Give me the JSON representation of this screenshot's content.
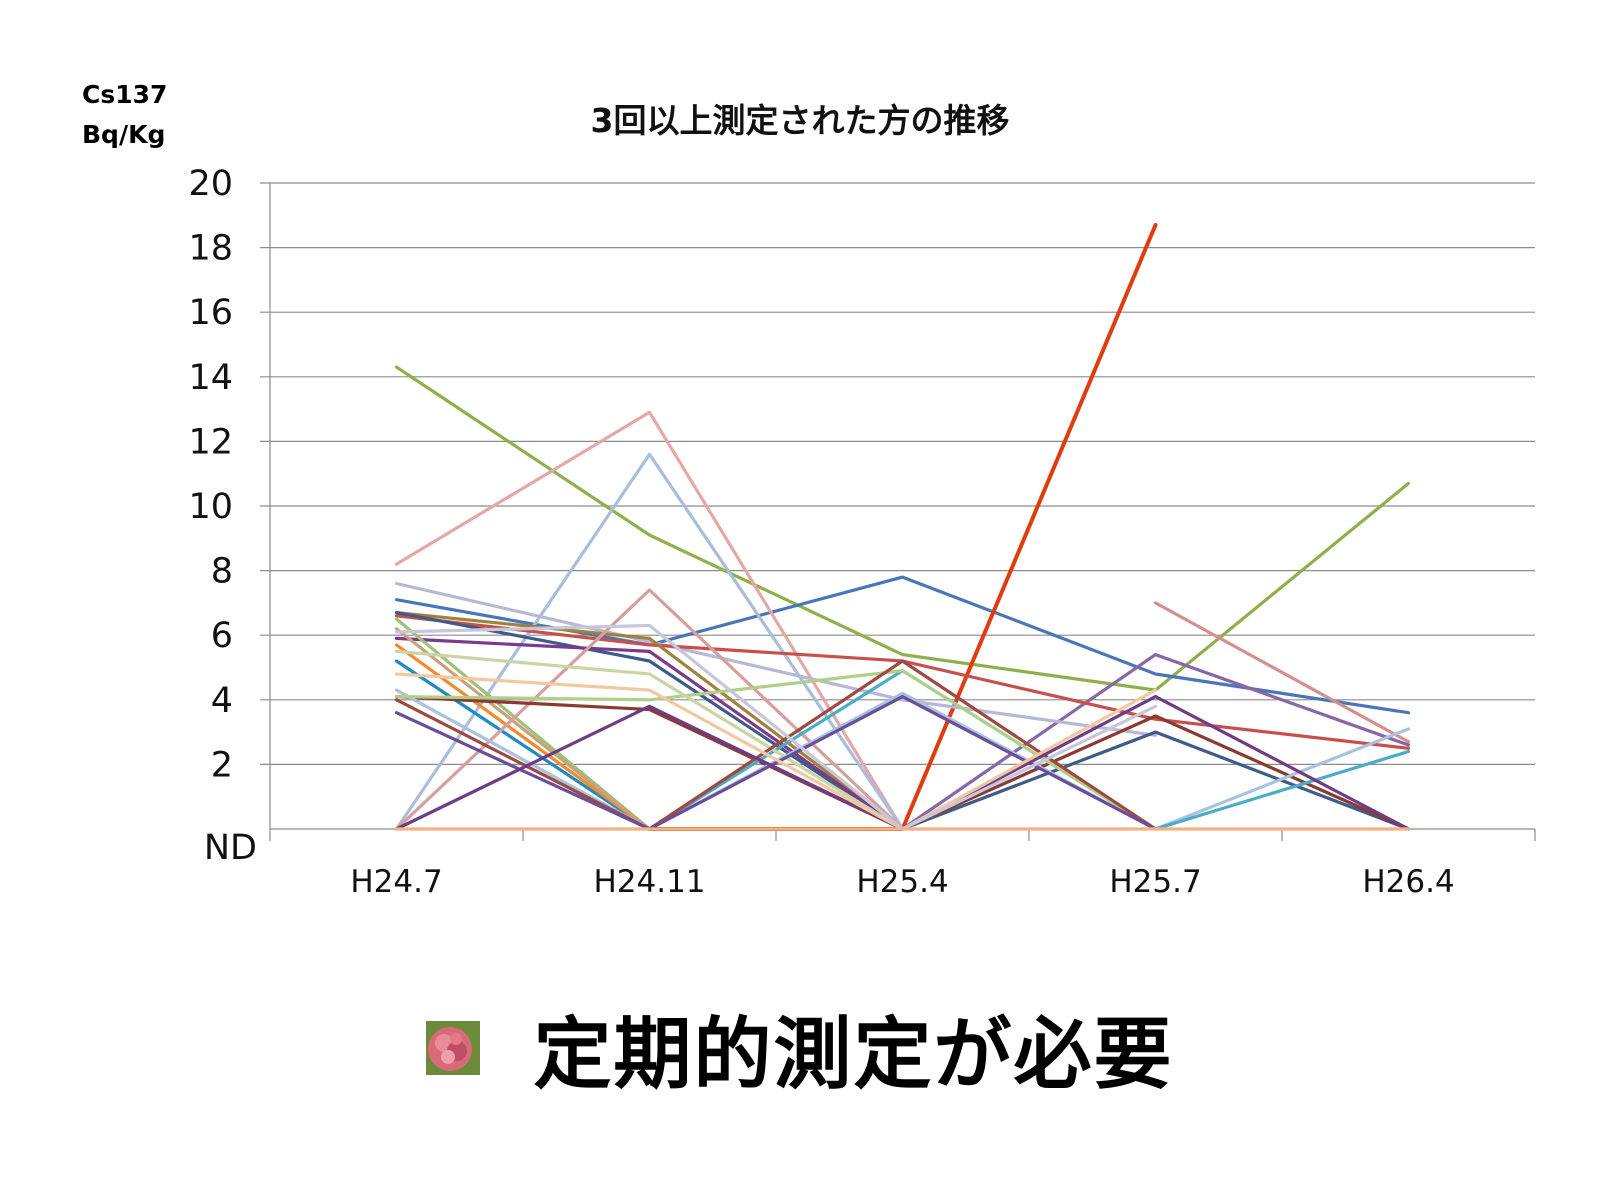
{
  "unit": {
    "line1": "Cs137",
    "line2": "Bq/Kg"
  },
  "title": "3回以上測定された方の推移",
  "footer": {
    "text": "定期的測定が必要",
    "bullet_icon": "rose-flower-icon"
  },
  "chart_data": {
    "type": "line",
    "title": "3回以上測定された方の推移",
    "ylabel": "Cs137 Bq/Kg",
    "xlabel": "",
    "categories": [
      "H24.7",
      "H24.11",
      "H25.4",
      "H25.7",
      "H26.4"
    ],
    "ylim": [
      0,
      20
    ],
    "yticks": [
      0,
      2,
      4,
      6,
      8,
      10,
      12,
      14,
      16,
      18,
      20
    ],
    "ytick_labels": [
      "ND",
      "2",
      "4",
      "6",
      "8",
      "10",
      "12",
      "14",
      "16",
      "18",
      "20"
    ],
    "grid": true,
    "legend": "none",
    "series": [
      {
        "color": "#8DB04A",
        "values": [
          14.3,
          9.1,
          5.4,
          4.3,
          10.7
        ]
      },
      {
        "color": "#4A76B8",
        "values": [
          7.1,
          5.7,
          7.8,
          4.8,
          3.6
        ]
      },
      {
        "color": "#E03C10",
        "values": [
          null,
          0,
          0,
          18.7,
          null
        ]
      },
      {
        "color": "#E3A9A6",
        "values": [
          8.2,
          12.9,
          0,
          null,
          null
        ]
      },
      {
        "color": "#A9BDDC",
        "values": [
          0,
          11.6,
          0,
          null,
          null
        ]
      },
      {
        "color": "#D4908E",
        "values": [
          null,
          null,
          null,
          7.0,
          2.7
        ]
      },
      {
        "color": "#8866A8",
        "values": [
          null,
          null,
          0,
          5.4,
          2.6
        ]
      },
      {
        "color": "#B5B8D6",
        "values": [
          7.6,
          5.8,
          4.0,
          2.9,
          null
        ]
      },
      {
        "color": "#C8504C",
        "values": [
          6.6,
          5.7,
          5.2,
          3.4,
          2.5
        ]
      },
      {
        "color": "#A0823C",
        "values": [
          6.7,
          5.9,
          0,
          null,
          null
        ]
      },
      {
        "color": "#3E5B8A",
        "values": [
          6.7,
          5.2,
          0,
          3.0,
          0
        ]
      },
      {
        "color": "#7B3A8C",
        "values": [
          5.9,
          5.5,
          0,
          null,
          null
        ]
      },
      {
        "color": "#1F8BC4",
        "values": [
          5.2,
          0,
          null,
          null,
          null
        ]
      },
      {
        "color": "#F28A2E",
        "values": [
          5.7,
          0,
          null,
          null,
          null
        ]
      },
      {
        "color": "#9FC27A",
        "values": [
          6.5,
          0,
          null,
          null,
          null
        ]
      },
      {
        "color": "#C9A27A",
        "values": [
          6.2,
          0,
          null,
          null,
          null
        ]
      },
      {
        "color": "#D69F9A",
        "values": [
          0,
          7.4,
          0,
          null,
          null
        ]
      },
      {
        "color": "#8B3A32",
        "values": [
          4.1,
          3.7,
          0,
          3.5,
          0
        ]
      },
      {
        "color": "#A8C2E0",
        "values": [
          4.3,
          0,
          4.2,
          0,
          3.1
        ]
      },
      {
        "color": "#4BACC6",
        "values": [
          null,
          0,
          4.9,
          0,
          2.4
        ]
      },
      {
        "color": "#B0D08A",
        "values": [
          4.1,
          4.0,
          4.9,
          0,
          null
        ]
      },
      {
        "color": "#C9D5A6",
        "values": [
          5.5,
          4.8,
          0,
          null,
          null
        ]
      },
      {
        "color": "#9E4A40",
        "values": [
          4.0,
          0,
          5.2,
          0,
          null
        ]
      },
      {
        "color": "#6A4E9A",
        "values": [
          3.6,
          0,
          4.1,
          0,
          null
        ]
      },
      {
        "color": "#6F3C86",
        "values": [
          0,
          3.8,
          0,
          4.1,
          0
        ]
      },
      {
        "color": "#F0C9A0",
        "values": [
          4.8,
          4.3,
          0,
          4.3,
          null
        ]
      },
      {
        "color": "#C7C7D9",
        "values": [
          6.1,
          6.3,
          0,
          3.8,
          null
        ]
      },
      {
        "color": "#F4B183",
        "values": [
          0,
          0,
          0,
          0,
          0
        ]
      }
    ]
  }
}
